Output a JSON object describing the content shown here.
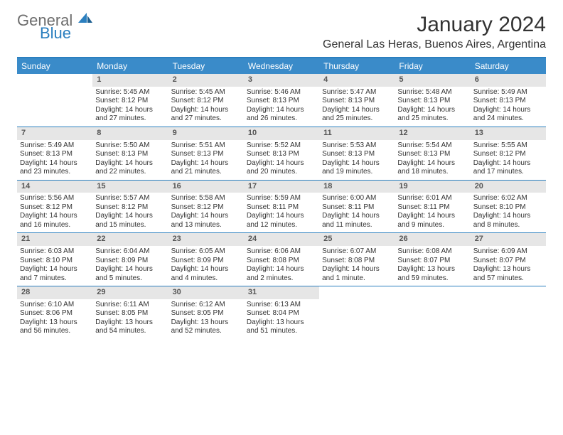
{
  "logo": {
    "word1": "General",
    "word2": "Blue"
  },
  "title": "January 2024",
  "subtitle": "General Las Heras, Buenos Aires, Argentina",
  "colors": {
    "accent": "#3a8bc9",
    "accent_border": "#2b7fbf",
    "daynum_bg": "#e6e6e6",
    "text": "#333333",
    "logo_gray": "#6d6d6d",
    "logo_blue": "#2b7fbf"
  },
  "day_names": [
    "Sunday",
    "Monday",
    "Tuesday",
    "Wednesday",
    "Thursday",
    "Friday",
    "Saturday"
  ],
  "weeks": [
    [
      null,
      {
        "n": "1",
        "sunrise": "Sunrise: 5:45 AM",
        "sunset": "Sunset: 8:12 PM",
        "daylight": "Daylight: 14 hours and 27 minutes."
      },
      {
        "n": "2",
        "sunrise": "Sunrise: 5:45 AM",
        "sunset": "Sunset: 8:12 PM",
        "daylight": "Daylight: 14 hours and 27 minutes."
      },
      {
        "n": "3",
        "sunrise": "Sunrise: 5:46 AM",
        "sunset": "Sunset: 8:13 PM",
        "daylight": "Daylight: 14 hours and 26 minutes."
      },
      {
        "n": "4",
        "sunrise": "Sunrise: 5:47 AM",
        "sunset": "Sunset: 8:13 PM",
        "daylight": "Daylight: 14 hours and 25 minutes."
      },
      {
        "n": "5",
        "sunrise": "Sunrise: 5:48 AM",
        "sunset": "Sunset: 8:13 PM",
        "daylight": "Daylight: 14 hours and 25 minutes."
      },
      {
        "n": "6",
        "sunrise": "Sunrise: 5:49 AM",
        "sunset": "Sunset: 8:13 PM",
        "daylight": "Daylight: 14 hours and 24 minutes."
      }
    ],
    [
      {
        "n": "7",
        "sunrise": "Sunrise: 5:49 AM",
        "sunset": "Sunset: 8:13 PM",
        "daylight": "Daylight: 14 hours and 23 minutes."
      },
      {
        "n": "8",
        "sunrise": "Sunrise: 5:50 AM",
        "sunset": "Sunset: 8:13 PM",
        "daylight": "Daylight: 14 hours and 22 minutes."
      },
      {
        "n": "9",
        "sunrise": "Sunrise: 5:51 AM",
        "sunset": "Sunset: 8:13 PM",
        "daylight": "Daylight: 14 hours and 21 minutes."
      },
      {
        "n": "10",
        "sunrise": "Sunrise: 5:52 AM",
        "sunset": "Sunset: 8:13 PM",
        "daylight": "Daylight: 14 hours and 20 minutes."
      },
      {
        "n": "11",
        "sunrise": "Sunrise: 5:53 AM",
        "sunset": "Sunset: 8:13 PM",
        "daylight": "Daylight: 14 hours and 19 minutes."
      },
      {
        "n": "12",
        "sunrise": "Sunrise: 5:54 AM",
        "sunset": "Sunset: 8:13 PM",
        "daylight": "Daylight: 14 hours and 18 minutes."
      },
      {
        "n": "13",
        "sunrise": "Sunrise: 5:55 AM",
        "sunset": "Sunset: 8:12 PM",
        "daylight": "Daylight: 14 hours and 17 minutes."
      }
    ],
    [
      {
        "n": "14",
        "sunrise": "Sunrise: 5:56 AM",
        "sunset": "Sunset: 8:12 PM",
        "daylight": "Daylight: 14 hours and 16 minutes."
      },
      {
        "n": "15",
        "sunrise": "Sunrise: 5:57 AM",
        "sunset": "Sunset: 8:12 PM",
        "daylight": "Daylight: 14 hours and 15 minutes."
      },
      {
        "n": "16",
        "sunrise": "Sunrise: 5:58 AM",
        "sunset": "Sunset: 8:12 PM",
        "daylight": "Daylight: 14 hours and 13 minutes."
      },
      {
        "n": "17",
        "sunrise": "Sunrise: 5:59 AM",
        "sunset": "Sunset: 8:11 PM",
        "daylight": "Daylight: 14 hours and 12 minutes."
      },
      {
        "n": "18",
        "sunrise": "Sunrise: 6:00 AM",
        "sunset": "Sunset: 8:11 PM",
        "daylight": "Daylight: 14 hours and 11 minutes."
      },
      {
        "n": "19",
        "sunrise": "Sunrise: 6:01 AM",
        "sunset": "Sunset: 8:11 PM",
        "daylight": "Daylight: 14 hours and 9 minutes."
      },
      {
        "n": "20",
        "sunrise": "Sunrise: 6:02 AM",
        "sunset": "Sunset: 8:10 PM",
        "daylight": "Daylight: 14 hours and 8 minutes."
      }
    ],
    [
      {
        "n": "21",
        "sunrise": "Sunrise: 6:03 AM",
        "sunset": "Sunset: 8:10 PM",
        "daylight": "Daylight: 14 hours and 7 minutes."
      },
      {
        "n": "22",
        "sunrise": "Sunrise: 6:04 AM",
        "sunset": "Sunset: 8:09 PM",
        "daylight": "Daylight: 14 hours and 5 minutes."
      },
      {
        "n": "23",
        "sunrise": "Sunrise: 6:05 AM",
        "sunset": "Sunset: 8:09 PM",
        "daylight": "Daylight: 14 hours and 4 minutes."
      },
      {
        "n": "24",
        "sunrise": "Sunrise: 6:06 AM",
        "sunset": "Sunset: 8:08 PM",
        "daylight": "Daylight: 14 hours and 2 minutes."
      },
      {
        "n": "25",
        "sunrise": "Sunrise: 6:07 AM",
        "sunset": "Sunset: 8:08 PM",
        "daylight": "Daylight: 14 hours and 1 minute."
      },
      {
        "n": "26",
        "sunrise": "Sunrise: 6:08 AM",
        "sunset": "Sunset: 8:07 PM",
        "daylight": "Daylight: 13 hours and 59 minutes."
      },
      {
        "n": "27",
        "sunrise": "Sunrise: 6:09 AM",
        "sunset": "Sunset: 8:07 PM",
        "daylight": "Daylight: 13 hours and 57 minutes."
      }
    ],
    [
      {
        "n": "28",
        "sunrise": "Sunrise: 6:10 AM",
        "sunset": "Sunset: 8:06 PM",
        "daylight": "Daylight: 13 hours and 56 minutes."
      },
      {
        "n": "29",
        "sunrise": "Sunrise: 6:11 AM",
        "sunset": "Sunset: 8:05 PM",
        "daylight": "Daylight: 13 hours and 54 minutes."
      },
      {
        "n": "30",
        "sunrise": "Sunrise: 6:12 AM",
        "sunset": "Sunset: 8:05 PM",
        "daylight": "Daylight: 13 hours and 52 minutes."
      },
      {
        "n": "31",
        "sunrise": "Sunrise: 6:13 AM",
        "sunset": "Sunset: 8:04 PM",
        "daylight": "Daylight: 13 hours and 51 minutes."
      },
      null,
      null,
      null
    ]
  ]
}
